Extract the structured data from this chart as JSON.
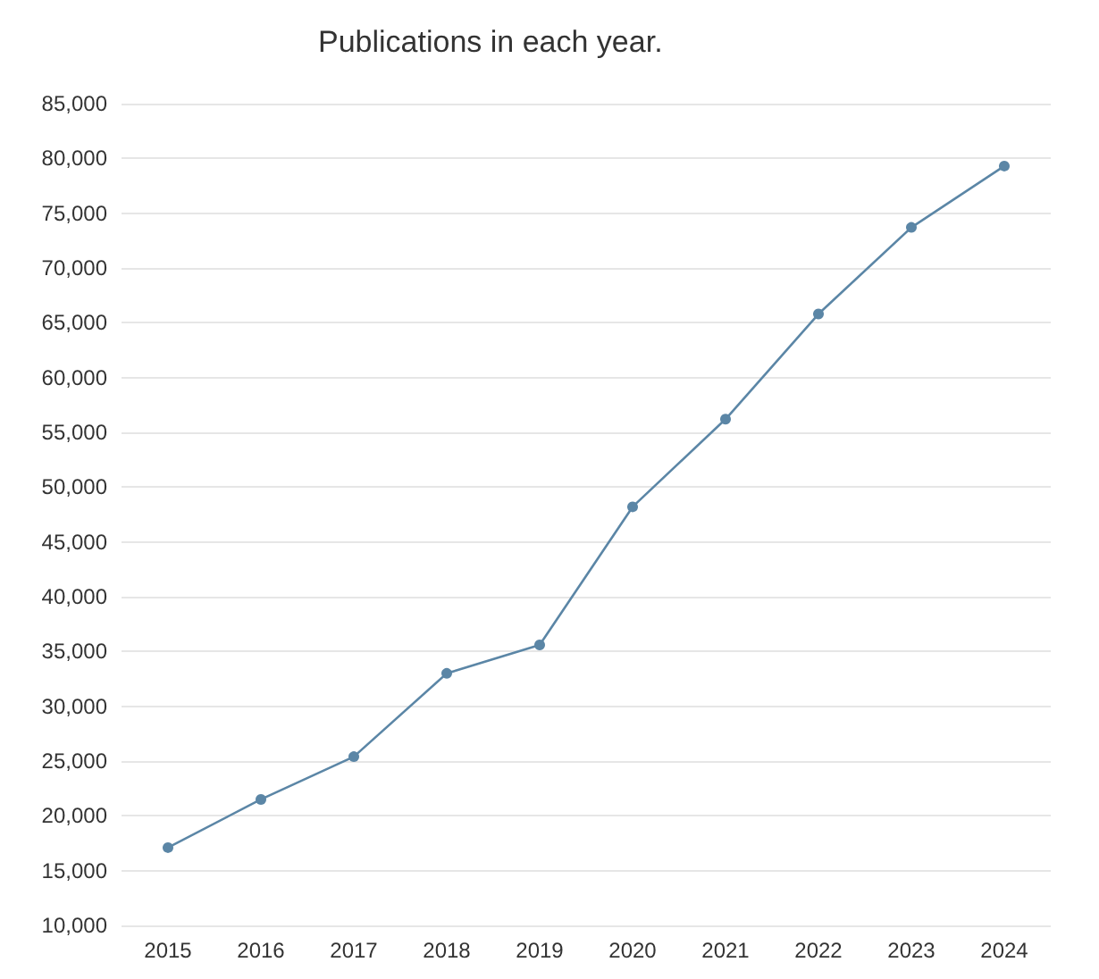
{
  "chart_data": {
    "type": "line",
    "title": "Publications in each year.",
    "categories": [
      "2015",
      "2016",
      "2017",
      "2018",
      "2019",
      "2020",
      "2021",
      "2022",
      "2023",
      "2024"
    ],
    "series": [
      {
        "color": "#5b86a6",
        "values": [
          17100,
          21500,
          25400,
          33000,
          35600,
          48200,
          56200,
          65800,
          73700,
          79300
        ]
      }
    ],
    "ylim": [
      10000,
      85000
    ],
    "yticks": [
      {
        "value": 10000,
        "label": "10,000"
      },
      {
        "value": 15000,
        "label": "15,000"
      },
      {
        "value": 20000,
        "label": "20,000"
      },
      {
        "value": 25000,
        "label": "25,000"
      },
      {
        "value": 30000,
        "label": "30,000"
      },
      {
        "value": 35000,
        "label": "35,000"
      },
      {
        "value": 40000,
        "label": "40,000"
      },
      {
        "value": 45000,
        "label": "45,000"
      },
      {
        "value": 50000,
        "label": "50,000"
      },
      {
        "value": 55000,
        "label": "55,000"
      },
      {
        "value": 60000,
        "label": "60,000"
      },
      {
        "value": 65000,
        "label": "65,000"
      },
      {
        "value": 70000,
        "label": "70,000"
      },
      {
        "value": 75000,
        "label": "75,000"
      },
      {
        "value": 80000,
        "label": "80,000"
      },
      {
        "value": 85000,
        "label": "85,000"
      }
    ],
    "grid": "y",
    "marker": "circle",
    "line_style": "solid"
  }
}
